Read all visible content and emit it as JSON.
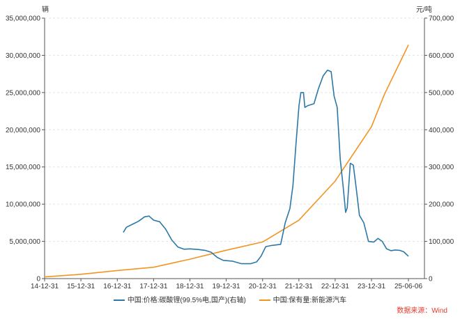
{
  "chart_data": {
    "type": "line",
    "left_unit": "辆",
    "right_unit": "元/吨",
    "x_ticks": [
      "14-12-31",
      "15-12-31",
      "16-12-31",
      "17-12-31",
      "18-12-31",
      "19-12-31",
      "20-12-31",
      "21-12-31",
      "22-12-31",
      "23-12-31",
      "25-06-06"
    ],
    "y_left": {
      "min": 0,
      "max": 35000000,
      "ticks": [
        "0",
        "5,000,000",
        "10,000,000",
        "15,000,000",
        "20,000,000",
        "25,000,000",
        "30,000,000",
        "35,000,000"
      ]
    },
    "y_right": {
      "min": 0,
      "max": 700000,
      "ticks": [
        "0",
        "100,000",
        "200,000",
        "300,000",
        "400,000",
        "500,000",
        "600,000",
        "700,000"
      ]
    },
    "series": [
      {
        "name": "中国:价格:碳酸锂(99.5%电,国产)(右轴)",
        "axis": "right",
        "color": "#2b78a8",
        "points": [
          [
            "2017-03-01",
            124000
          ],
          [
            "2017-04-01",
            138000
          ],
          [
            "2017-06-01",
            146000
          ],
          [
            "2017-08-01",
            154000
          ],
          [
            "2017-10-01",
            166000
          ],
          [
            "2017-11-15",
            168000
          ],
          [
            "2018-01-01",
            157000
          ],
          [
            "2018-03-01",
            153000
          ],
          [
            "2018-05-01",
            133000
          ],
          [
            "2018-07-01",
            104000
          ],
          [
            "2018-09-01",
            85000
          ],
          [
            "2018-11-01",
            79000
          ],
          [
            "2019-01-01",
            80000
          ],
          [
            "2019-04-01",
            78000
          ],
          [
            "2019-06-01",
            76000
          ],
          [
            "2019-08-01",
            71000
          ],
          [
            "2019-10-01",
            57000
          ],
          [
            "2019-12-01",
            49000
          ],
          [
            "2020-03-01",
            47000
          ],
          [
            "2020-06-01",
            40000
          ],
          [
            "2020-09-01",
            40000
          ],
          [
            "2020-11-01",
            45000
          ],
          [
            "2020-12-15",
            60000
          ],
          [
            "2021-02-01",
            86000
          ],
          [
            "2021-04-01",
            89000
          ],
          [
            "2021-07-01",
            92000
          ],
          [
            "2021-08-15",
            150000
          ],
          [
            "2021-10-01",
            188000
          ],
          [
            "2021-11-01",
            250000
          ],
          [
            "2021-12-01",
            360000
          ],
          [
            "2022-01-01",
            465000
          ],
          [
            "2022-01-20",
            500000
          ],
          [
            "2022-02-15",
            500000
          ],
          [
            "2022-03-01",
            460000
          ],
          [
            "2022-04-01",
            465000
          ],
          [
            "2022-06-01",
            470000
          ],
          [
            "2022-07-15",
            510000
          ],
          [
            "2022-09-01",
            545000
          ],
          [
            "2022-10-15",
            560000
          ],
          [
            "2022-11-20",
            556000
          ],
          [
            "2022-12-20",
            490000
          ],
          [
            "2023-01-20",
            460000
          ],
          [
            "2023-02-20",
            320000
          ],
          [
            "2023-03-20",
            250000
          ],
          [
            "2023-04-15",
            178000
          ],
          [
            "2023-05-01",
            190000
          ],
          [
            "2023-06-01",
            310000
          ],
          [
            "2023-07-01",
            305000
          ],
          [
            "2023-08-01",
            240000
          ],
          [
            "2023-09-01",
            170000
          ],
          [
            "2023-10-15",
            150000
          ],
          [
            "2023-12-01",
            100000
          ],
          [
            "2024-02-01",
            98000
          ],
          [
            "2024-04-01",
            108000
          ],
          [
            "2024-06-01",
            100000
          ],
          [
            "2024-08-01",
            80000
          ],
          [
            "2024-10-01",
            75000
          ],
          [
            "2024-12-01",
            77000
          ],
          [
            "2025-02-01",
            76000
          ],
          [
            "2025-04-01",
            72000
          ],
          [
            "2025-06-06",
            60000
          ]
        ]
      },
      {
        "name": "中国:保有量:新能源汽车",
        "axis": "left",
        "color": "#f29422",
        "points": [
          [
            "2014-12-31",
            220000
          ],
          [
            "2015-12-31",
            580000
          ],
          [
            "2016-12-31",
            1090000
          ],
          [
            "2017-12-31",
            1530000
          ],
          [
            "2018-12-31",
            2610000
          ],
          [
            "2019-12-31",
            3810000
          ],
          [
            "2020-12-31",
            4920000
          ],
          [
            "2021-12-31",
            7840000
          ],
          [
            "2022-12-31",
            13100000
          ],
          [
            "2023-12-31",
            20410000
          ],
          [
            "2024-06-30",
            24720000
          ],
          [
            "2025-06-06",
            31400000
          ]
        ]
      }
    ],
    "legend_position": "bottom-center",
    "grid": true,
    "source": "数据来源：Wind"
  }
}
